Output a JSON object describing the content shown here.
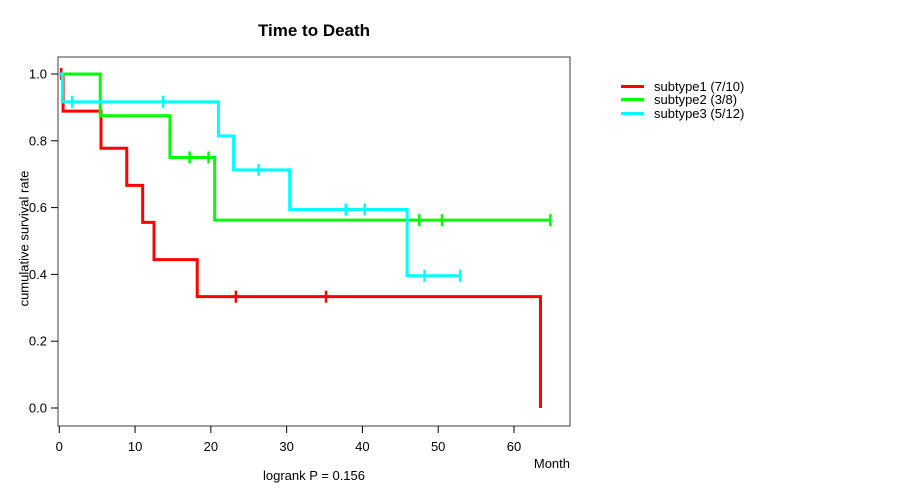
{
  "chart_data": {
    "type": "line",
    "subtype": "kaplan-meier-step-curves",
    "title": "Time to Death",
    "xlabel": "Month",
    "ylabel": "cumulative survival rate",
    "footnote": "logrank P = 0.156",
    "xlim": [
      0,
      67.4
    ],
    "ylim": [
      0.0,
      1.0
    ],
    "xticks": [
      0,
      10,
      20,
      30,
      40,
      50,
      60
    ],
    "xtick_labels": [
      "0",
      "10",
      "20",
      "30",
      "40",
      "50",
      "60"
    ],
    "yticks": [
      0.0,
      0.2,
      0.4,
      0.6,
      0.8,
      1.0
    ],
    "ytick_labels": [
      "0.0",
      "0.2",
      "0.4",
      "0.6",
      "0.8",
      "1.0"
    ],
    "grid": false,
    "legend_position": "right-outside",
    "frame_color": "#3c3c3c",
    "tick_color": "#000000",
    "series": [
      {
        "name": "subtype1 (7/10)",
        "slug": "subtype1",
        "color": "#ff0000",
        "steps": [
          [
            0,
            1.0
          ],
          [
            0.5,
            0.8889
          ],
          [
            5.5,
            0.7778
          ],
          [
            8.9,
            0.6667
          ],
          [
            11.0,
            0.5556
          ],
          [
            12.5,
            0.4444
          ],
          [
            18.2,
            0.3333
          ],
          [
            63.5,
            0.0
          ]
        ],
        "end_month": 63.5,
        "censor_marks": [
          [
            0.25,
            1.0
          ],
          [
            23.3,
            0.3333
          ],
          [
            35.2,
            0.3333
          ]
        ]
      },
      {
        "name": "subtype2 (3/8)",
        "slug": "subtype2",
        "color": "#00ff00",
        "steps": [
          [
            0,
            1.0
          ],
          [
            5.4,
            0.875
          ],
          [
            14.6,
            0.75
          ],
          [
            20.5,
            0.5625
          ]
        ],
        "end_month": 64.8,
        "censor_marks": [
          [
            17.2,
            0.75
          ],
          [
            19.7,
            0.75
          ],
          [
            47.5,
            0.5625
          ],
          [
            50.5,
            0.5625
          ],
          [
            64.8,
            0.5625
          ]
        ]
      },
      {
        "name": "subtype3 (5/12)",
        "slug": "subtype3",
        "color": "#00ffff",
        "steps": [
          [
            0,
            1.0
          ],
          [
            0.4,
            0.9167
          ],
          [
            21.0,
            0.8148
          ],
          [
            23.0,
            0.713
          ],
          [
            30.4,
            0.5942
          ],
          [
            45.9,
            0.3961
          ]
        ],
        "end_month": 52.9,
        "censor_marks": [
          [
            1.7,
            0.9167
          ],
          [
            13.7,
            0.9167
          ],
          [
            26.3,
            0.713
          ],
          [
            37.8,
            0.5942
          ],
          [
            40.3,
            0.5942
          ],
          [
            48.2,
            0.3961
          ],
          [
            52.9,
            0.3961
          ]
        ]
      }
    ]
  }
}
